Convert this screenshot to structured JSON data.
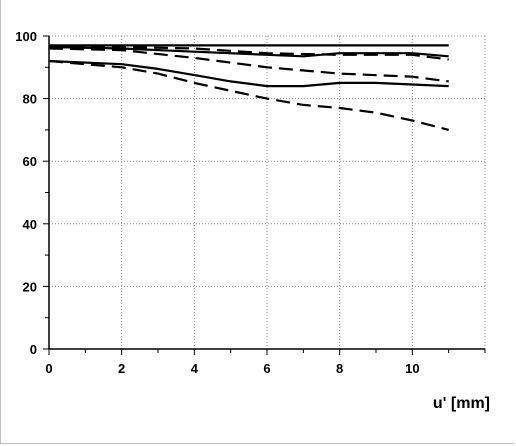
{
  "chart_data": {
    "type": "line",
    "title": "",
    "xlabel": "u' [mm]",
    "ylabel": "",
    "xlim": [
      0,
      12
    ],
    "ylim": [
      0,
      100
    ],
    "xticks": [
      0,
      2,
      4,
      6,
      8,
      10
    ],
    "yticks": [
      0,
      20,
      40,
      60,
      80,
      100
    ],
    "grid": true,
    "legend": "none",
    "series": [
      {
        "style": "solid",
        "x": [
          0,
          2,
          4,
          6,
          8,
          10,
          11
        ],
        "y": [
          97,
          97,
          97,
          97,
          97,
          97,
          97
        ]
      },
      {
        "style": "solid",
        "x": [
          0,
          2,
          4,
          6,
          7,
          8,
          10,
          11
        ],
        "y": [
          96.5,
          96,
          95,
          94,
          93.5,
          94.5,
          94.5,
          93.5
        ]
      },
      {
        "style": "dashed",
        "x": [
          0,
          2,
          4,
          6,
          8,
          10,
          11
        ],
        "y": [
          96.5,
          96.5,
          96,
          94.5,
          94,
          94,
          92.5
        ]
      },
      {
        "style": "dashed",
        "x": [
          0,
          2,
          4,
          6,
          8,
          10,
          11
        ],
        "y": [
          96,
          95.5,
          93,
          90,
          88,
          87,
          85.5
        ]
      },
      {
        "style": "solid",
        "x": [
          0,
          2,
          3,
          4,
          5,
          6,
          7,
          8,
          9,
          10,
          11
        ],
        "y": [
          92,
          91,
          89.5,
          87.5,
          85.5,
          84,
          84,
          85,
          85,
          84.5,
          84
        ]
      },
      {
        "style": "dashed",
        "x": [
          0,
          1,
          2,
          3,
          4,
          5,
          6,
          7,
          8,
          9,
          10,
          11
        ],
        "y": [
          92,
          91,
          90,
          88,
          85,
          82.5,
          80,
          78,
          77,
          75.5,
          73,
          70
        ]
      }
    ]
  }
}
